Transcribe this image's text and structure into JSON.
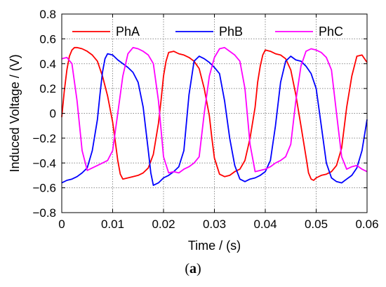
{
  "chart_data": {
    "type": "line",
    "xlabel": "Time / (s)",
    "ylabel": "Induced Voltage / (V)",
    "xlim": [
      0,
      0.06
    ],
    "ylim": [
      -0.8,
      0.8
    ],
    "xticks": [
      0,
      0.01,
      0.02,
      0.03,
      0.04,
      0.05,
      0.06
    ],
    "xtick_labels": [
      "0",
      "0.01",
      "0.02",
      "0.03",
      "0.04",
      "0.05",
      "0.06"
    ],
    "yticks": [
      -0.8,
      -0.6,
      -0.4,
      -0.2,
      0,
      0.2,
      0.4,
      0.6,
      0.8
    ],
    "ytick_labels": [
      "−0.8",
      "−0.6",
      "−0.4",
      "−0.2",
      "0",
      "0.2",
      "0.4",
      "0.6",
      "0.8"
    ],
    "grid": true,
    "legend_position": "top",
    "series": [
      {
        "name": "PhA",
        "color": "#ff0000",
        "x": [
          0,
          0.0005,
          0.001,
          0.0015,
          0.002,
          0.0025,
          0.003,
          0.004,
          0.005,
          0.006,
          0.007,
          0.008,
          0.009,
          0.01,
          0.0105,
          0.011,
          0.0115,
          0.012,
          0.013,
          0.014,
          0.015,
          0.016,
          0.017,
          0.018,
          0.019,
          0.0195,
          0.02,
          0.0205,
          0.021,
          0.022,
          0.023,
          0.024,
          0.025,
          0.026,
          0.027,
          0.028,
          0.029,
          0.0295,
          0.03,
          0.031,
          0.032,
          0.033,
          0.034,
          0.035,
          0.036,
          0.037,
          0.038,
          0.0385,
          0.039,
          0.0395,
          0.04,
          0.041,
          0.042,
          0.043,
          0.044,
          0.045,
          0.046,
          0.047,
          0.048,
          0.0485,
          0.049,
          0.0495,
          0.05,
          0.051,
          0.052,
          0.053,
          0.054,
          0.055,
          0.056,
          0.057,
          0.058,
          0.059,
          0.06
        ],
        "y": [
          -0.03,
          0.18,
          0.35,
          0.46,
          0.51,
          0.53,
          0.53,
          0.52,
          0.5,
          0.47,
          0.42,
          0.3,
          0.14,
          -0.07,
          -0.22,
          -0.38,
          -0.49,
          -0.53,
          -0.52,
          -0.51,
          -0.5,
          -0.48,
          -0.44,
          -0.33,
          -0.08,
          0.1,
          0.3,
          0.42,
          0.49,
          0.5,
          0.48,
          0.47,
          0.45,
          0.42,
          0.36,
          0.2,
          -0.02,
          -0.2,
          -0.36,
          -0.49,
          -0.51,
          -0.5,
          -0.47,
          -0.45,
          -0.38,
          -0.2,
          0.05,
          0.25,
          0.38,
          0.47,
          0.51,
          0.5,
          0.48,
          0.47,
          0.44,
          0.35,
          0.15,
          -0.1,
          -0.35,
          -0.48,
          -0.53,
          -0.54,
          -0.52,
          -0.5,
          -0.49,
          -0.47,
          -0.42,
          -0.28,
          0.05,
          0.3,
          0.46,
          0.47,
          0.41
        ]
      },
      {
        "name": "PhB",
        "color": "#0000ff",
        "x": [
          0,
          0.001,
          0.002,
          0.003,
          0.004,
          0.005,
          0.006,
          0.007,
          0.0075,
          0.008,
          0.0085,
          0.009,
          0.01,
          0.011,
          0.012,
          0.013,
          0.014,
          0.015,
          0.016,
          0.017,
          0.0175,
          0.018,
          0.019,
          0.02,
          0.021,
          0.022,
          0.023,
          0.024,
          0.025,
          0.026,
          0.027,
          0.028,
          0.029,
          0.03,
          0.031,
          0.032,
          0.033,
          0.034,
          0.035,
          0.036,
          0.037,
          0.038,
          0.039,
          0.04,
          0.041,
          0.042,
          0.043,
          0.044,
          0.045,
          0.046,
          0.047,
          0.048,
          0.049,
          0.05,
          0.051,
          0.052,
          0.053,
          0.054,
          0.055,
          0.056,
          0.057,
          0.058,
          0.059,
          0.06
        ],
        "y": [
          -0.56,
          -0.54,
          -0.53,
          -0.51,
          -0.48,
          -0.44,
          -0.3,
          -0.05,
          0.15,
          0.33,
          0.44,
          0.48,
          0.47,
          0.43,
          0.4,
          0.37,
          0.33,
          0.25,
          0.05,
          -0.3,
          -0.48,
          -0.58,
          -0.56,
          -0.52,
          -0.5,
          -0.47,
          -0.43,
          -0.3,
          0.15,
          0.42,
          0.46,
          0.44,
          0.41,
          0.37,
          0.32,
          0.1,
          -0.2,
          -0.42,
          -0.53,
          -0.55,
          -0.53,
          -0.52,
          -0.5,
          -0.47,
          -0.38,
          -0.1,
          0.25,
          0.42,
          0.46,
          0.43,
          0.42,
          0.38,
          0.32,
          0.2,
          -0.1,
          -0.4,
          -0.52,
          -0.55,
          -0.56,
          -0.53,
          -0.5,
          -0.44,
          -0.3,
          -0.05
        ]
      },
      {
        "name": "PhC",
        "color": "#ff00ff",
        "x": [
          0,
          0.001,
          0.002,
          0.003,
          0.004,
          0.005,
          0.006,
          0.007,
          0.008,
          0.009,
          0.01,
          0.011,
          0.012,
          0.013,
          0.014,
          0.015,
          0.016,
          0.017,
          0.018,
          0.019,
          0.02,
          0.021,
          0.022,
          0.023,
          0.024,
          0.025,
          0.026,
          0.027,
          0.028,
          0.029,
          0.03,
          0.031,
          0.032,
          0.033,
          0.034,
          0.035,
          0.036,
          0.037,
          0.038,
          0.039,
          0.04,
          0.041,
          0.042,
          0.043,
          0.044,
          0.045,
          0.046,
          0.047,
          0.048,
          0.049,
          0.05,
          0.051,
          0.052,
          0.053,
          0.054,
          0.055,
          0.056,
          0.057,
          0.058,
          0.059,
          0.06
        ],
        "y": [
          0.44,
          0.45,
          0.4,
          0.1,
          -0.3,
          -0.46,
          -0.44,
          -0.42,
          -0.4,
          -0.38,
          -0.3,
          0.0,
          0.3,
          0.48,
          0.53,
          0.52,
          0.5,
          0.47,
          0.4,
          0.1,
          -0.35,
          -0.48,
          -0.47,
          -0.48,
          -0.45,
          -0.43,
          -0.4,
          -0.35,
          0.0,
          0.3,
          0.45,
          0.52,
          0.53,
          0.5,
          0.47,
          0.42,
          0.2,
          -0.25,
          -0.47,
          -0.46,
          -0.45,
          -0.43,
          -0.4,
          -0.38,
          -0.35,
          -0.25,
          0.1,
          0.38,
          0.5,
          0.52,
          0.51,
          0.49,
          0.45,
          0.35,
          0.0,
          -0.35,
          -0.45,
          -0.43,
          -0.42,
          -0.45,
          -0.47
        ]
      }
    ]
  },
  "caption": {
    "open": "(",
    "letter": "a",
    "close": ")"
  }
}
